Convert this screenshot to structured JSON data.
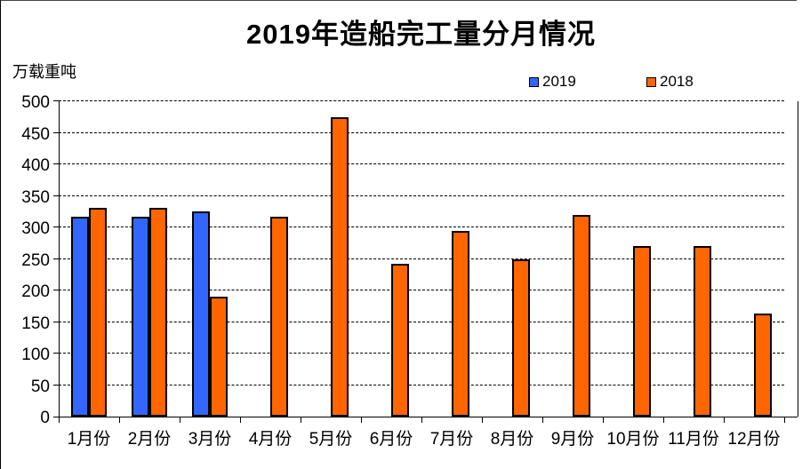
{
  "chart_data": {
    "type": "bar",
    "title": "2019年造船完工量分月情况",
    "ylabel": "万载重吨",
    "xlabel": "",
    "categories": [
      "1月份",
      "2月份",
      "3月份",
      "4月份",
      "5月份",
      "6月份",
      "7月份",
      "8月份",
      "9月份",
      "10月份",
      "11月份",
      "12月份"
    ],
    "series": [
      {
        "name": "2019",
        "color": "#3366FF",
        "values": [
          317,
          317,
          326,
          null,
          null,
          null,
          null,
          null,
          null,
          null,
          null,
          null
        ]
      },
      {
        "name": "2018",
        "color": "#FF6600",
        "values": [
          331,
          331,
          190,
          317,
          474,
          242,
          295,
          249,
          320,
          271,
          270,
          164
        ]
      }
    ],
    "ylim": [
      0,
      500
    ],
    "ytick_step": 50,
    "grid": "horizontal-dashed",
    "legend_position": "top-right",
    "bar_border_color": "#000000"
  }
}
